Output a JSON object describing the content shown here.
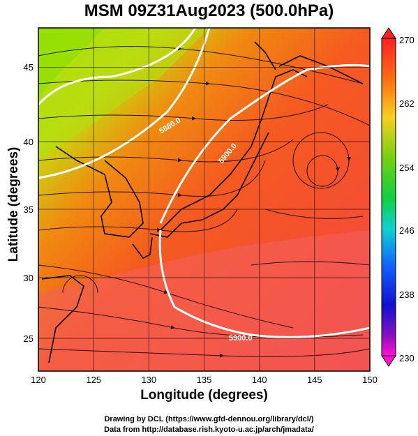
{
  "title": "MSM 09Z31Aug2023 (500.0hPa)",
  "axes": {
    "xlabel": "Longitude (degrees)",
    "ylabel": "Latitude  (degrees)",
    "xticks": [
      "120",
      "125",
      "130",
      "135",
      "140",
      "145",
      "150"
    ],
    "yticks": [
      "25",
      "30",
      "35",
      "40",
      "45"
    ]
  },
  "colorbar": {
    "labels": [
      "270",
      "262",
      "254",
      "246",
      "238",
      "230"
    ],
    "colors": [
      "#ff2020",
      "#ff7010",
      "#f5d020",
      "#70d010",
      "#10d040",
      "#10d0d0",
      "#1060ff",
      "#1010d0",
      "#8010c0",
      "#ff10d0"
    ]
  },
  "contours": {
    "label_5880": "5880.0",
    "label_5900a": "5900.0",
    "label_5900b": "5900.0"
  },
  "chart_data": {
    "type": "heatmap",
    "title": "MSM 09Z31Aug2023 (500.0hPa)",
    "xlabel": "Longitude (degrees)",
    "ylabel": "Latitude  (degrees)",
    "xlim": [
      120,
      150
    ],
    "ylim": [
      22.5,
      47.5
    ],
    "colorbar_range": [
      230,
      270
    ],
    "contour_levels": [
      5880.0,
      5900.0
    ]
  },
  "credits": {
    "line1": "Drawing by DCL (https://www.gfd-dennou.org/library/dcl/)",
    "line2": "Data from http://database.rish.kyoto-u.ac.jp/arch/jmadata/"
  }
}
